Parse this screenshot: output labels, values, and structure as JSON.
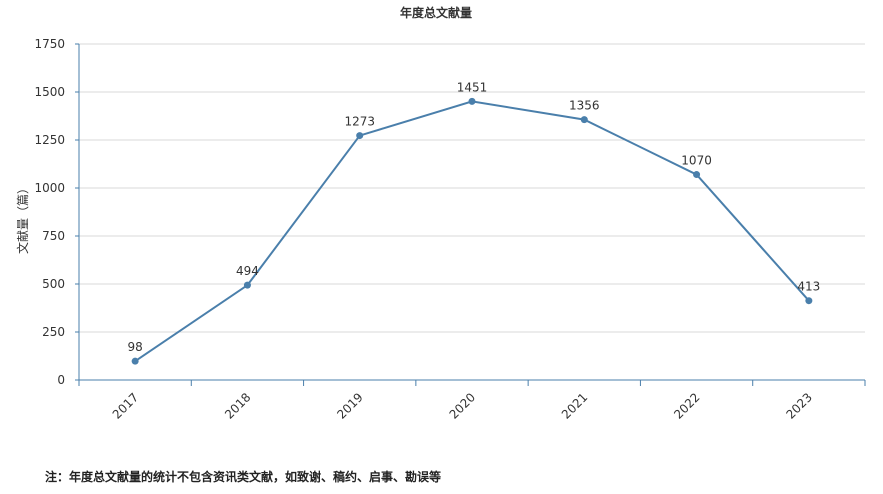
{
  "chart_data": {
    "type": "line",
    "title": "年度总文献量",
    "ylabel": "文献量（篇）",
    "xlabel": "",
    "categories": [
      "2017",
      "2018",
      "2019",
      "2020",
      "2021",
      "2022",
      "2023"
    ],
    "series": [
      {
        "values": [
          98,
          494,
          1273,
          1451,
          1356,
          1070,
          413
        ],
        "color": "#4a7fab"
      }
    ],
    "ylim": [
      0,
      1750
    ],
    "yticks": [
      0,
      250,
      500,
      750,
      1000,
      1250,
      1500,
      1750
    ],
    "grid": true,
    "data_labels": true
  },
  "note": "注：年度总文献量的统计不包含资讯类文献，如致谢、稿约、启事、勘误等"
}
